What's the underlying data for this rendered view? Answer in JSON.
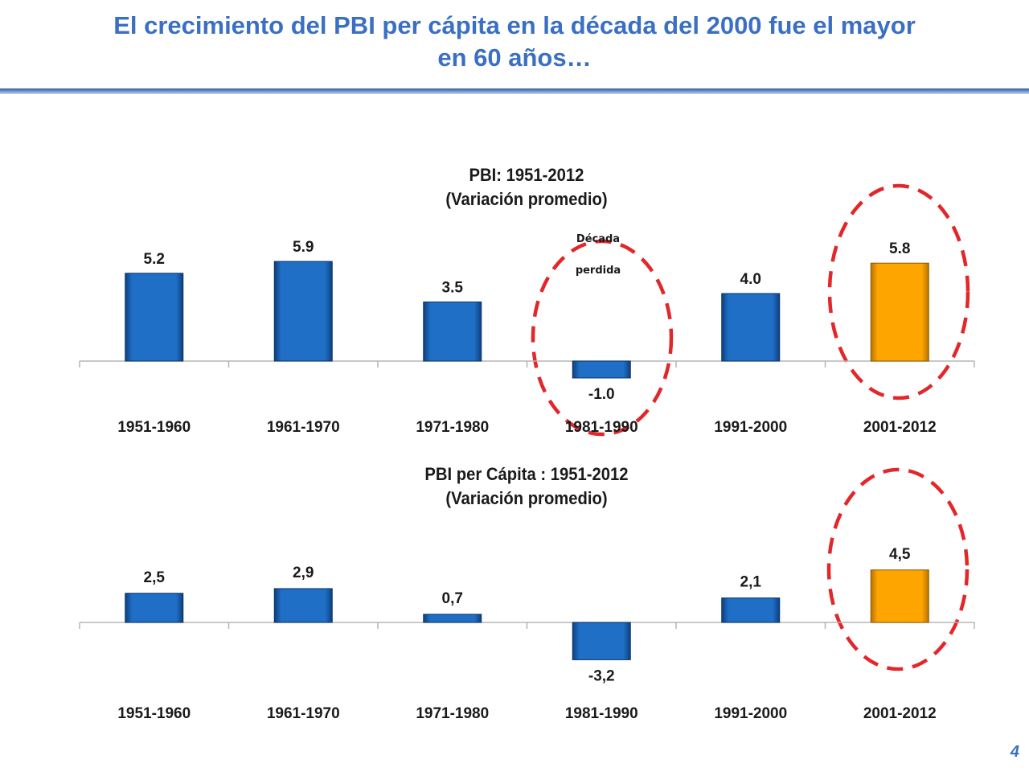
{
  "slide": {
    "title_line1": "El crecimiento del PBI per cápita en la década del 2000 fue el mayor",
    "title_line2": "en 60 años…",
    "page_number": "4"
  },
  "colors": {
    "title": "#3a6fc4",
    "bar_blue": "#1f6fc6",
    "bar_highlight": "#ffa500",
    "circle": "#e3262a"
  },
  "chart_data": [
    {
      "type": "bar",
      "title_line1": "PBI: 1951-2012",
      "title_line2": "(Variación promedio)",
      "categories": [
        "1951-1960",
        "1961-1970",
        "1971-1980",
        "1981-1990",
        "1991-2000",
        "2001-2012"
      ],
      "values": [
        5.2,
        5.9,
        3.5,
        -1.0,
        4.0,
        5.8
      ],
      "value_labels": [
        "5.2",
        "5.9",
        "3.5",
        "-1.0",
        "4.0",
        "5.8"
      ],
      "highlight_index": 5,
      "annotation_line1": "Década",
      "annotation_line2": "perdida",
      "circled": [
        "1981-1990",
        "2001-2012"
      ]
    },
    {
      "type": "bar",
      "title_line1": "PBI per Cápita : 1951-2012",
      "title_line2": "(Variación promedio)",
      "categories": [
        "1951-1960",
        "1961-1970",
        "1971-1980",
        "1981-1990",
        "1991-2000",
        "2001-2012"
      ],
      "values": [
        2.5,
        2.9,
        0.7,
        -3.2,
        2.1,
        4.5
      ],
      "value_labels": [
        "2,5",
        "2,9",
        "0,7",
        "-3,2",
        "2,1",
        "4,5"
      ],
      "highlight_index": 5,
      "circled": [
        "2001-2012"
      ]
    }
  ]
}
